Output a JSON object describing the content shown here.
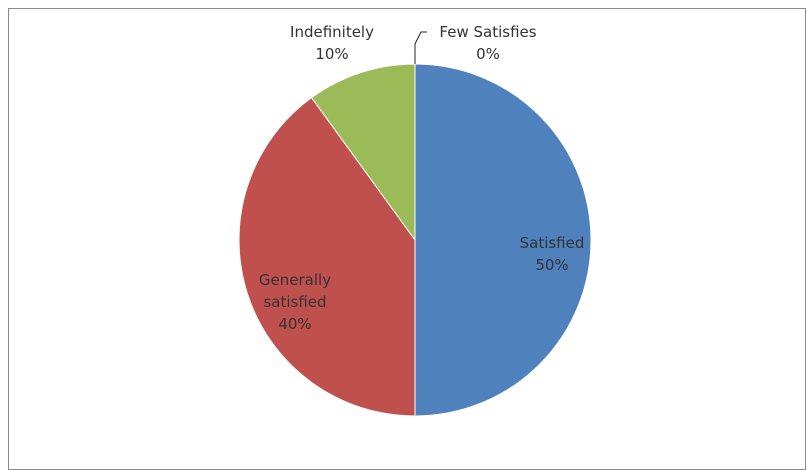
{
  "chart_data": {
    "type": "pie",
    "title": "",
    "slices": [
      {
        "label": "Satisfied",
        "value": 50,
        "percent_label": "50%",
        "color": "#4F81BD"
      },
      {
        "label": "Generally satisfied",
        "value": 40,
        "percent_label": "40%",
        "color": "#C0504D"
      },
      {
        "label": "Indefinitely",
        "value": 10,
        "percent_label": "10%",
        "color": "#9BBB59"
      },
      {
        "label": "Few Satisfies",
        "value": 0,
        "percent_label": "0%",
        "color": "#8064A2"
      }
    ],
    "legend": "none",
    "labels_shown": "category name and percentage"
  }
}
